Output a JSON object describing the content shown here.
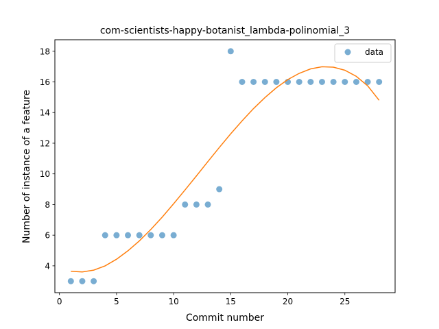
{
  "chart_data": {
    "type": "scatter",
    "title": "com-scientists-happy-botanist_lambda-polinomial_3",
    "xlabel": "Commit number",
    "ylabel": "Number of instance of a feature",
    "xlim": [
      -0.4,
      29.4
    ],
    "ylim": [
      2.25,
      18.75
    ],
    "xticks": [
      0,
      5,
      10,
      15,
      20,
      25
    ],
    "yticks": [
      4,
      6,
      8,
      10,
      12,
      14,
      16,
      18
    ],
    "grid": false,
    "legend_position": "top-right",
    "series": [
      {
        "name": "data",
        "kind": "scatter",
        "color": "#1f77b4",
        "x": [
          1,
          2,
          3,
          4,
          5,
          6,
          7,
          8,
          9,
          10,
          11,
          12,
          13,
          14,
          15,
          16,
          17,
          18,
          19,
          20,
          21,
          22,
          23,
          24,
          25,
          26,
          27,
          28
        ],
        "y": [
          3,
          3,
          3,
          6,
          6,
          6,
          6,
          6,
          6,
          6,
          8,
          8,
          8,
          9,
          18,
          16,
          16,
          16,
          16,
          16,
          16,
          16,
          16,
          16,
          16,
          16,
          16,
          16
        ]
      },
      {
        "kind": "line",
        "color": "#ff7f0e",
        "x": [
          1,
          2,
          3,
          4,
          5,
          6,
          7,
          8,
          9,
          10,
          11,
          12,
          13,
          14,
          15,
          16,
          17,
          18,
          19,
          20,
          21,
          22,
          23,
          24,
          25,
          26,
          27,
          28
        ],
        "y": [
          3.65,
          3.6,
          3.72,
          4.0,
          4.43,
          4.98,
          5.63,
          6.37,
          7.18,
          8.05,
          8.95,
          9.87,
          10.8,
          11.72,
          12.61,
          13.46,
          14.26,
          14.98,
          15.62,
          16.15,
          16.56,
          16.85,
          16.99,
          16.96,
          16.76,
          16.36,
          15.74,
          14.8
        ]
      }
    ]
  }
}
